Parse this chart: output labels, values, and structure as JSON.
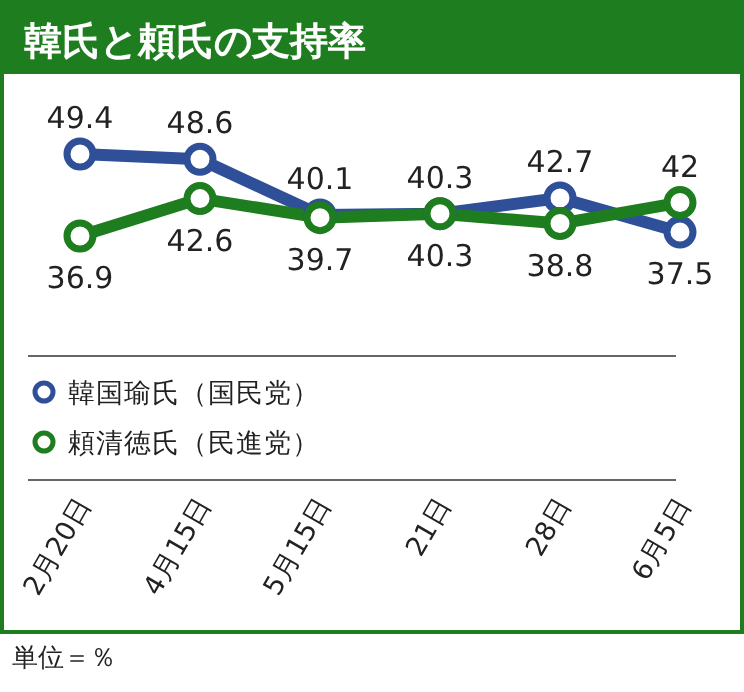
{
  "chart_data": {
    "type": "line",
    "title": "韓氏と頼氏の支持率",
    "categories": [
      "2月20日",
      "4月15日",
      "5月15日",
      "21日",
      "28日",
      "6月5日"
    ],
    "series": [
      {
        "name": "韓国瑜氏（国民党）",
        "color": "#2f4f99",
        "values": [
          49.4,
          48.6,
          40.1,
          40.3,
          42.7,
          37.5
        ]
      },
      {
        "name": "頼清徳氏（民進党）",
        "color": "#1e7d1e",
        "values": [
          36.9,
          42.6,
          39.7,
          40.3,
          38.8,
          42
        ]
      }
    ],
    "data_labels": true,
    "marker": "circle",
    "legend": "bottom",
    "annotations": [
      "単位＝％"
    ]
  }
}
